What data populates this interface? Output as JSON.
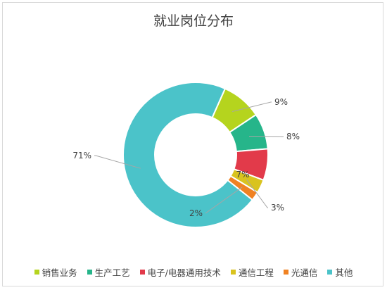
{
  "chart_data": {
    "type": "pie",
    "variant": "donut",
    "title": "就业岗位分布",
    "legend_position": "bottom",
    "slices": [
      {
        "name": "销售业务",
        "value": 9,
        "label": "9%",
        "color": "#b5d41e"
      },
      {
        "name": "生产工艺",
        "value": 8,
        "label": "8%",
        "color": "#26b58a"
      },
      {
        "name": "电子/电器通用技术",
        "value": 7,
        "label": "7%",
        "color": "#e23a4a"
      },
      {
        "name": "通信工程",
        "value": 3,
        "label": "3%",
        "color": "#d9c31e"
      },
      {
        "name": "光通信",
        "value": 2,
        "label": "2%",
        "color": "#f08222"
      },
      {
        "name": "其他",
        "value": 71,
        "label": "71%",
        "color": "#4bc3c9"
      }
    ]
  }
}
